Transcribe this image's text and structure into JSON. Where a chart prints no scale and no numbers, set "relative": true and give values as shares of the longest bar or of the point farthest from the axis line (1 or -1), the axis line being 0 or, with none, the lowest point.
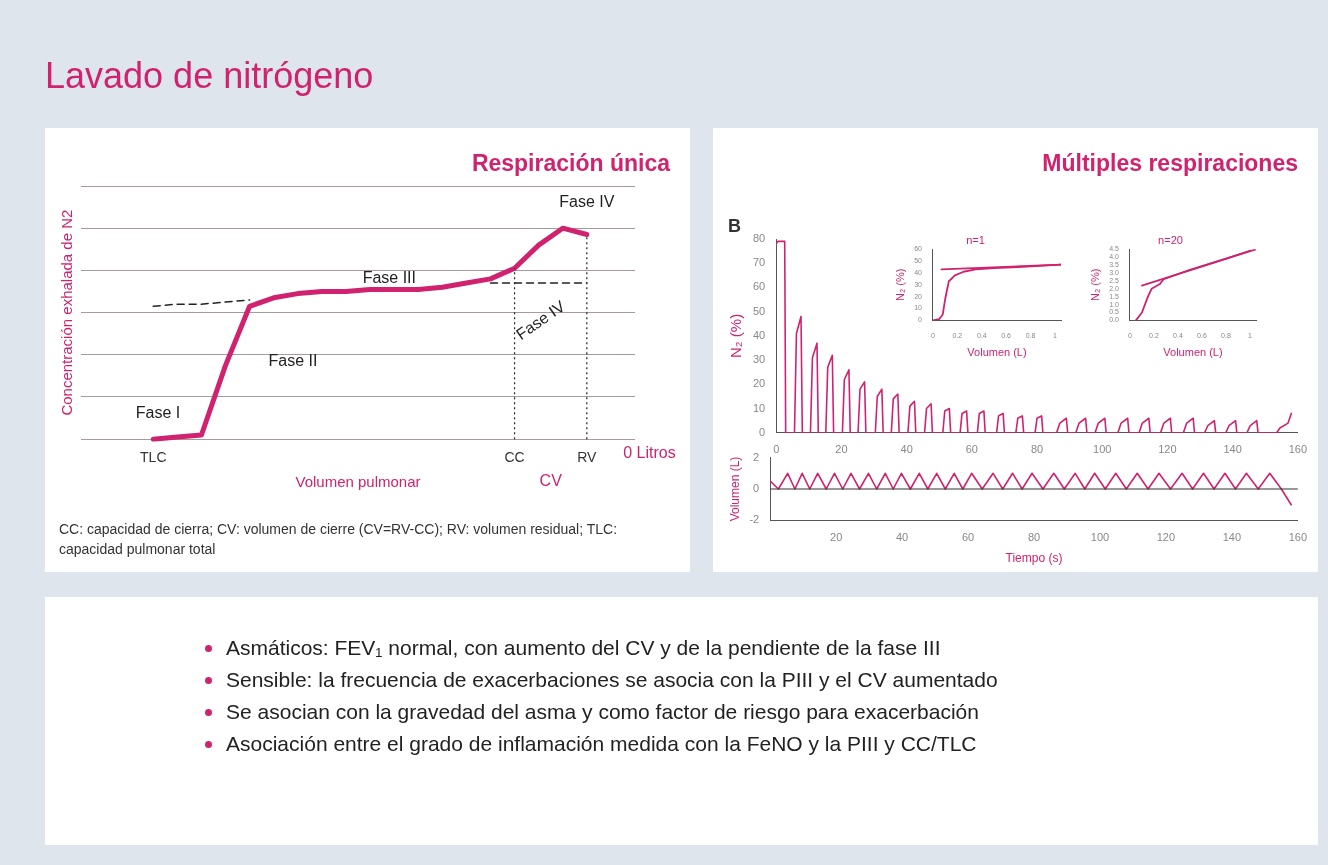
{
  "chart_data": [
    {
      "type": "line",
      "title": "Respiración única",
      "ylabel": "Concentración exhalada de N2",
      "xlabel": "Volumen pulmonar",
      "relative": true,
      "grid": "y",
      "tick_labels": "x",
      "categories": [
        null,
        null,
        null,
        "TLC",
        null,
        null,
        null,
        null,
        null,
        null,
        null,
        null,
        null,
        null,
        null,
        null,
        null,
        null,
        "CC",
        null,
        null,
        "RV",
        null,
        null
      ],
      "series": [
        {
          "color": "#d0226e",
          "values": [
            null,
            null,
            null,
            0,
            0.01,
            0.02,
            0.35,
            0.63,
            0.67,
            0.69,
            0.7,
            0.7,
            0.71,
            0.71,
            0.71,
            0.72,
            0.74,
            0.76,
            0.81,
            0.92,
            1.0,
            0.97,
            null,
            null
          ]
        },
        {
          "color": "#222222",
          "line_style": "dashed",
          "values": [
            null,
            null,
            null,
            0.63,
            0.64,
            0.64,
            0.65,
            0.66,
            null,
            null,
            null,
            null,
            null,
            null,
            null,
            null,
            null,
            null,
            null,
            null,
            null,
            null,
            null,
            null
          ]
        },
        {
          "color": "#222222",
          "line_style": "dashed",
          "values": [
            null,
            null,
            null,
            null,
            null,
            null,
            null,
            null,
            null,
            null,
            null,
            null,
            null,
            null,
            null,
            null,
            null,
            0.74,
            0.74,
            0.74,
            0.74,
            0.74,
            null,
            null
          ]
        }
      ],
      "ref_lines": [
        {
          "axis": "x",
          "value": "CC",
          "line_style": "dotted",
          "color": "#222222"
        },
        {
          "axis": "x",
          "value": "RV",
          "line_style": "dotted",
          "color": "#222222"
        }
      ],
      "annotations": [
        "Fase I",
        "Fase II",
        "Fase III",
        "Fase IV",
        "Fase IV",
        "0 Litros",
        "CV",
        "CC:  capacidad de cierra; CV: volumen de cierre (CV=RV-CC); RV: volumen residual; TLC: capacidad pulmonar total"
      ]
    },
    {
      "type": "line",
      "title": "Múltiples respiraciones",
      "ylabel": "N₂ (%)",
      "annotations": [
        "B"
      ],
      "xlim": [
        0,
        160
      ],
      "xticks": [
        0,
        20,
        40,
        60,
        80,
        100,
        120,
        140,
        160
      ],
      "ylim": [
        0,
        80
      ],
      "yticks": [
        0,
        10,
        20,
        30,
        40,
        50,
        60,
        70,
        80
      ],
      "series": [
        {
          "color": "#d0226e",
          "x": [
            0,
            0.5,
            2.6,
            2.9,
            5.6,
            6.2,
            7.6,
            8.0,
            10.5,
            11.1,
            12.5,
            12.9,
            15.2,
            15.8,
            17.2,
            17.6,
            20.3,
            20.9,
            22.3,
            22.7,
            25.1,
            25.7,
            27.1,
            27.5,
            30.4,
            31.0,
            32.4,
            32.8,
            35.3,
            35.9,
            37.3,
            37.7,
            40.4,
            41.0,
            42.4,
            42.8,
            45.5,
            46.1,
            47.5,
            47.9,
            51.1,
            51.7,
            53.1,
            53.5,
            56.4,
            57.0,
            58.4,
            58.8,
            61.7,
            62.3,
            63.7,
            64.1,
            67.6,
            68.2,
            69.6,
            70.0,
            73.5,
            74.1,
            75.5,
            75.9,
            79.4,
            80.0,
            81.4,
            81.8,
            86.0,
            87.0,
            89.0,
            89.4,
            91.9,
            92.9,
            94.9,
            95.3,
            97.8,
            98.8,
            100.8,
            101.2,
            104.8,
            105.8,
            107.8,
            108.2,
            111.3,
            112.3,
            114.3,
            114.7,
            117.9,
            118.9,
            120.9,
            121.3,
            124.9,
            125.9,
            127.9,
            128.3,
            131.4,
            132.4,
            134.4,
            134.8,
            137.9,
            138.9,
            140.9,
            141.3,
            144.4,
            145.4,
            147.4,
            147.8,
            151,
            153.5,
            154.5,
            157,
            158
          ],
          "values": [
            78,
            79,
            79,
            0,
            0,
            41,
            48,
            0,
            0,
            31,
            37,
            0,
            0,
            27,
            32,
            0,
            0,
            22,
            26,
            0,
            0,
            18,
            21,
            0,
            0,
            15,
            18,
            0,
            0,
            14,
            16,
            0,
            0,
            11,
            13,
            0,
            0,
            10,
            12,
            0,
            0,
            9,
            10,
            0,
            0,
            8,
            9,
            0,
            0,
            8,
            9,
            0,
            0,
            7,
            8,
            0,
            0,
            6,
            7,
            0,
            0,
            6,
            7,
            0,
            0,
            4,
            6,
            0,
            0,
            4,
            6,
            0,
            0,
            4,
            6,
            0,
            0,
            4,
            6,
            0,
            0,
            4,
            6,
            0,
            0,
            4,
            6,
            0,
            0,
            4,
            6,
            0,
            0,
            3,
            5,
            0,
            0,
            3,
            5,
            0,
            0,
            3,
            5,
            0,
            0,
            0,
            2,
            4,
            8
          ]
        }
      ]
    },
    {
      "type": "line",
      "title": "n=1",
      "xlabel": "Volumen (L)",
      "ylabel": "N₂ (%)",
      "xlim": [
        0,
        1.05
      ],
      "xticks": [
        0,
        0.2,
        0.4,
        0.6,
        0.8,
        1
      ],
      "ylim": [
        0,
        60
      ],
      "yticks": [
        0,
        10,
        20,
        30,
        40,
        50,
        60
      ],
      "series": [
        {
          "color": "#d0226e",
          "x": [
            0,
            0.05,
            0.08,
            0.1,
            0.13,
            0.18,
            0.25,
            0.35,
            0.5,
            0.7,
            1.05
          ],
          "values": [
            0,
            1,
            5,
            18,
            33,
            38,
            41,
            43,
            44,
            45,
            47
          ]
        },
        {
          "color": "#d0226e",
          "x": [
            0.07,
            1.05
          ],
          "values": [
            43,
            47
          ]
        }
      ]
    },
    {
      "type": "line",
      "title": "n=20",
      "xlabel": "Volumen (L)",
      "ylabel": "N₂ (%)",
      "xlim": [
        0,
        1.05
      ],
      "xticks": [
        0,
        0.2,
        0.4,
        0.6,
        0.8,
        1
      ],
      "ylim": [
        0,
        4.5
      ],
      "yticks": [
        {
          "value": 0,
          "label": "0.0"
        },
        0.5,
        {
          "value": 1,
          "label": "1.0"
        },
        1.5,
        {
          "value": 2,
          "label": "2.0"
        },
        2.5,
        {
          "value": 3,
          "label": "3.0"
        },
        3.5,
        {
          "value": 4,
          "label": "4.0"
        },
        4.5
      ],
      "series": [
        {
          "color": "#d0226e",
          "x": [
            0.05,
            0.1,
            0.15,
            0.18,
            0.25,
            0.28,
            0.5,
            0.8,
            1.0
          ],
          "values": [
            0,
            0.5,
            1.5,
            2.0,
            2.3,
            2.6,
            3.2,
            3.9,
            4.4
          ]
        },
        {
          "color": "#d0226e",
          "x": [
            0.1,
            1.05
          ],
          "values": [
            2.2,
            4.5
          ]
        }
      ]
    },
    {
      "type": "line",
      "xlabel": "Tiempo (s)",
      "ylabel": "Volumen (L)",
      "xlim": [
        0,
        160
      ],
      "xticks": [
        20,
        40,
        60,
        80,
        100,
        120,
        140,
        160
      ],
      "ylim": [
        -2,
        2
      ],
      "yticks": [
        -2,
        0,
        2
      ],
      "ref_lines": [
        {
          "axis": "y",
          "value": 0,
          "color": "#333333"
        }
      ],
      "series": [
        {
          "color": "#d0226e",
          "x": [
            0,
            2.5,
            5.3,
            7.5,
            9.7,
            12,
            14.4,
            17,
            19.5,
            22,
            24.5,
            27.1,
            29.8,
            32.3,
            34.9,
            37.3,
            39.8,
            42.5,
            45.2,
            47.8,
            50.5,
            53.1,
            55.8,
            58.4,
            61.1,
            64.3,
            67.6,
            70.5,
            73.5,
            76.4,
            79.4,
            82.7,
            86,
            89.2,
            92.5,
            95.4,
            98.4,
            101.6,
            104.8,
            108,
            111.3,
            114.6,
            117.9,
            121.4,
            124.9,
            128.1,
            131.4,
            134.6,
            137.9,
            141.1,
            144.4,
            148,
            151.5,
            155,
            158
          ],
          "values": [
            0.5,
            0,
            1,
            0,
            1,
            0,
            1,
            0,
            1,
            0,
            1,
            0,
            1,
            0,
            1,
            0,
            1,
            0,
            1,
            0,
            1,
            0,
            1,
            0,
            1,
            0,
            1,
            0,
            1,
            0,
            1,
            0,
            1,
            0,
            1,
            0,
            1,
            0,
            1,
            0,
            1,
            0,
            1,
            0,
            1,
            0,
            1,
            0,
            1,
            0,
            1,
            0,
            1,
            0,
            -1
          ]
        }
      ]
    },
    {
      "type": "other",
      "title": "Lavado de nitrógeno",
      "annotations": [
        "Asmáticos: FEV₁ normal, con aumento del CV y de la pendiente de la fase III",
        "Sensible: la frecuencia de exacerbaciones se asocia con la PIII y el CV aumentado",
        "Se asocian con la gravedad del asma y como factor de riesgo para exacerbación",
        "Asociación entre el grado de inflamación medida con la FeNO y la PIII y CC/TLC"
      ]
    }
  ]
}
